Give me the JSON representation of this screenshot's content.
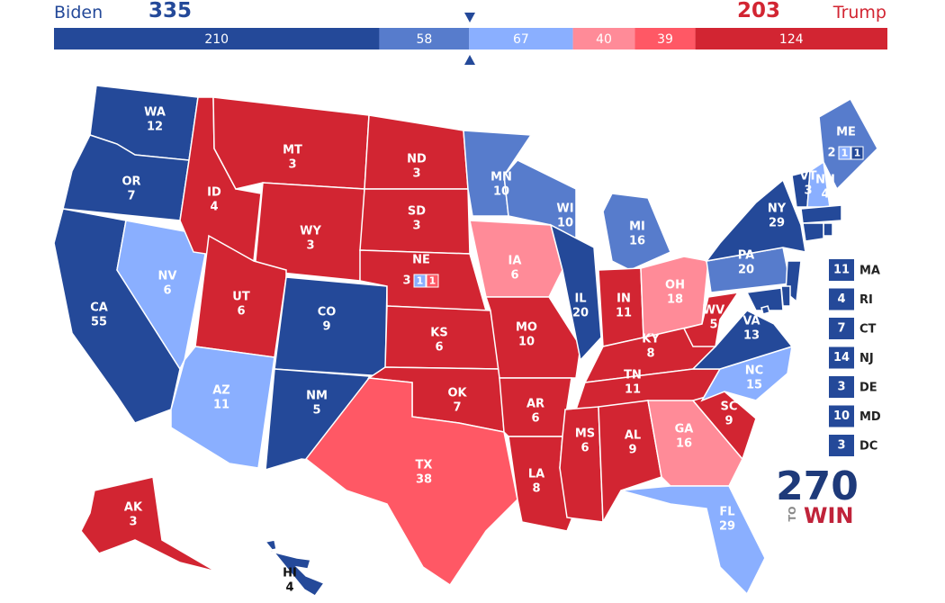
{
  "header": {
    "left_name": "Biden",
    "left_total": 335,
    "right_total": 203,
    "right_name": "Trump"
  },
  "bar": {
    "segments": [
      {
        "value": 210,
        "color": "#244999"
      },
      {
        "value": 58,
        "color": "#577ccc"
      },
      {
        "value": 67,
        "color": "#8aafff"
      },
      {
        "value": 40,
        "color": "#ff8b98"
      },
      {
        "value": 39,
        "color": "#ff5865"
      },
      {
        "value": 124,
        "color": "#d22532"
      }
    ]
  },
  "states": [
    {
      "abbr": "WA",
      "votes": 12,
      "color": "#244999"
    },
    {
      "abbr": "OR",
      "votes": 7,
      "color": "#244999"
    },
    {
      "abbr": "CA",
      "votes": 55,
      "color": "#244999"
    },
    {
      "abbr": "NV",
      "votes": 6,
      "color": "#8aafff"
    },
    {
      "abbr": "ID",
      "votes": 4,
      "color": "#d22532"
    },
    {
      "abbr": "MT",
      "votes": 3,
      "color": "#d22532"
    },
    {
      "abbr": "WY",
      "votes": 3,
      "color": "#d22532"
    },
    {
      "abbr": "UT",
      "votes": 6,
      "color": "#d22532"
    },
    {
      "abbr": "AZ",
      "votes": 11,
      "color": "#8aafff"
    },
    {
      "abbr": "CO",
      "votes": 9,
      "color": "#244999"
    },
    {
      "abbr": "NM",
      "votes": 5,
      "color": "#244999"
    },
    {
      "abbr": "ND",
      "votes": 3,
      "color": "#d22532"
    },
    {
      "abbr": "SD",
      "votes": 3,
      "color": "#d22532"
    },
    {
      "abbr": "NE",
      "votes": 3,
      "color": "#d22532",
      "districts": [
        {
          "votes": 1,
          "color": "#8aafff"
        },
        {
          "votes": 1,
          "color": "#ff5865"
        }
      ]
    },
    {
      "abbr": "KS",
      "votes": 6,
      "color": "#d22532"
    },
    {
      "abbr": "OK",
      "votes": 7,
      "color": "#d22532"
    },
    {
      "abbr": "TX",
      "votes": 38,
      "color": "#ff5865"
    },
    {
      "abbr": "MN",
      "votes": 10,
      "color": "#577ccc"
    },
    {
      "abbr": "IA",
      "votes": 6,
      "color": "#ff8b98"
    },
    {
      "abbr": "MO",
      "votes": 10,
      "color": "#d22532"
    },
    {
      "abbr": "AR",
      "votes": 6,
      "color": "#d22532"
    },
    {
      "abbr": "LA",
      "votes": 8,
      "color": "#d22532"
    },
    {
      "abbr": "WI",
      "votes": 10,
      "color": "#577ccc"
    },
    {
      "abbr": "IL",
      "votes": 20,
      "color": "#244999"
    },
    {
      "abbr": "MI",
      "votes": 16,
      "color": "#577ccc"
    },
    {
      "abbr": "IN",
      "votes": 11,
      "color": "#d22532"
    },
    {
      "abbr": "OH",
      "votes": 18,
      "color": "#ff8b98"
    },
    {
      "abbr": "KY",
      "votes": 8,
      "color": "#d22532"
    },
    {
      "abbr": "TN",
      "votes": 11,
      "color": "#d22532"
    },
    {
      "abbr": "MS",
      "votes": 6,
      "color": "#d22532"
    },
    {
      "abbr": "AL",
      "votes": 9,
      "color": "#d22532"
    },
    {
      "abbr": "GA",
      "votes": 16,
      "color": "#ff8b98"
    },
    {
      "abbr": "FL",
      "votes": 29,
      "color": "#8aafff"
    },
    {
      "abbr": "SC",
      "votes": 9,
      "color": "#d22532"
    },
    {
      "abbr": "NC",
      "votes": 15,
      "color": "#8aafff"
    },
    {
      "abbr": "VA",
      "votes": 13,
      "color": "#244999"
    },
    {
      "abbr": "WV",
      "votes": 5,
      "color": "#d22532"
    },
    {
      "abbr": "PA",
      "votes": 20,
      "color": "#577ccc"
    },
    {
      "abbr": "NY",
      "votes": 29,
      "color": "#244999"
    },
    {
      "abbr": "VT",
      "votes": 3,
      "color": "#244999"
    },
    {
      "abbr": "NH",
      "votes": 4,
      "color": "#8aafff"
    },
    {
      "abbr": "ME",
      "votes": 2,
      "color": "#577ccc",
      "districts": [
        {
          "votes": 1,
          "color": "#8aafff"
        },
        {
          "votes": 1,
          "color": "#244999"
        }
      ]
    },
    {
      "abbr": "AK",
      "votes": 3,
      "color": "#d22532"
    },
    {
      "abbr": "HI",
      "votes": 4,
      "color": "#244999"
    },
    {
      "abbr": "MA",
      "votes": 11,
      "color": "#244999"
    },
    {
      "abbr": "RI",
      "votes": 4,
      "color": "#244999"
    },
    {
      "abbr": "CT",
      "votes": 7,
      "color": "#244999"
    },
    {
      "abbr": "NJ",
      "votes": 14,
      "color": "#244999"
    },
    {
      "abbr": "DE",
      "votes": 3,
      "color": "#244999"
    },
    {
      "abbr": "MD",
      "votes": 10,
      "color": "#244999"
    },
    {
      "abbr": "DC",
      "votes": 3,
      "color": "#244999"
    }
  ],
  "logo": {
    "number": "270",
    "to": "TO",
    "win": "WIN"
  }
}
